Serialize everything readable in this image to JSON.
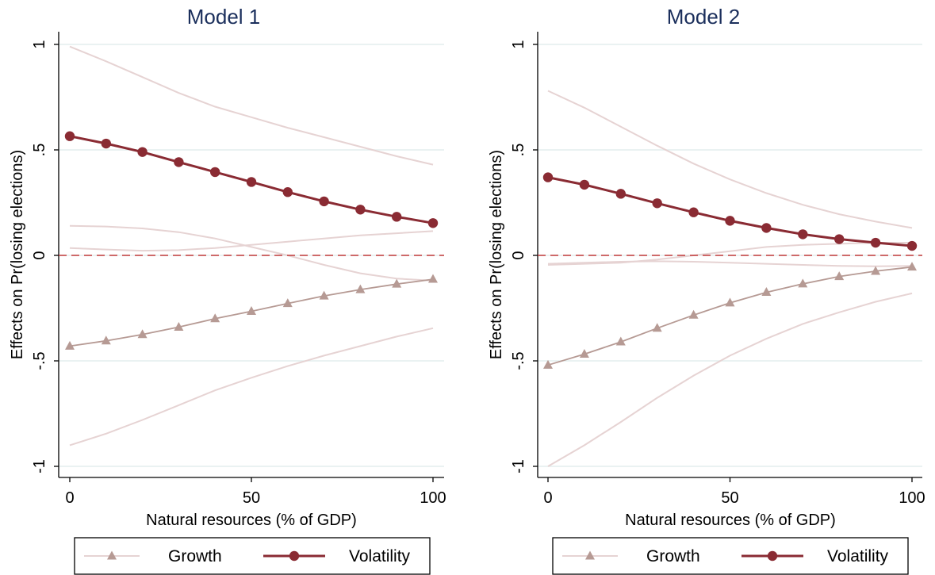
{
  "colors": {
    "volatility": "#8a2b33",
    "growth": "#b69a94",
    "ci": "#e6d3d3",
    "zero_line": "#c23b3b",
    "grid": "#e4eeee",
    "title": "#1b2f5c",
    "axis": "#000000"
  },
  "chart_data": [
    {
      "type": "line",
      "title": "Model 1",
      "xlabel": "Natural resources (% of GDP)",
      "ylabel": "Effects on Pr(losing elections)",
      "xlim": [
        0,
        100
      ],
      "ylim": [
        -1,
        1
      ],
      "xticks": [
        0,
        50,
        100
      ],
      "xtick_labels": [
        "0",
        "50",
        "100"
      ],
      "yticks": [
        -1,
        -0.5,
        0,
        0.5,
        1
      ],
      "ytick_labels": [
        "-1",
        "-.5",
        "0",
        ".5",
        "1"
      ],
      "grid": true,
      "reference_line": 0,
      "x": [
        0,
        10,
        20,
        30,
        40,
        50,
        60,
        70,
        80,
        90,
        100
      ],
      "series": [
        {
          "name": "Growth",
          "marker": "triangle",
          "values": [
            -0.43,
            -0.405,
            -0.375,
            -0.34,
            -0.3,
            -0.265,
            -0.228,
            -0.192,
            -0.162,
            -0.136,
            -0.113
          ],
          "ci_lower": [
            -0.9,
            -0.845,
            -0.78,
            -0.71,
            -0.64,
            -0.58,
            -0.525,
            -0.475,
            -0.43,
            -0.385,
            -0.345
          ],
          "ci_upper": [
            0.035,
            0.028,
            0.022,
            0.025,
            0.035,
            0.05,
            0.065,
            0.08,
            0.095,
            0.105,
            0.115
          ]
        },
        {
          "name": "Volatility",
          "marker": "circle",
          "values": [
            0.565,
            0.53,
            0.49,
            0.442,
            0.395,
            0.348,
            0.3,
            0.256,
            0.217,
            0.183,
            0.153
          ],
          "ci_lower": [
            0.14,
            0.137,
            0.128,
            0.11,
            0.08,
            0.04,
            0.0,
            -0.045,
            -0.085,
            -0.11,
            -0.12
          ],
          "ci_upper": [
            0.99,
            0.92,
            0.845,
            0.77,
            0.705,
            0.655,
            0.605,
            0.56,
            0.515,
            0.47,
            0.43
          ]
        }
      ],
      "legend": {
        "position": "bottom",
        "entries": [
          "Growth",
          "Volatility"
        ]
      }
    },
    {
      "type": "line",
      "title": "Model 2",
      "xlabel": "Natural resources (% of GDP)",
      "ylabel": "Effects on Pr(losing elections)",
      "xlim": [
        0,
        100
      ],
      "ylim": [
        -1,
        1
      ],
      "xticks": [
        0,
        50,
        100
      ],
      "xtick_labels": [
        "0",
        "50",
        "100"
      ],
      "yticks": [
        -1,
        -0.5,
        0,
        0.5,
        1
      ],
      "ytick_labels": [
        "-1",
        "-.5",
        "0",
        ".5",
        "1"
      ],
      "grid": true,
      "reference_line": 0,
      "x": [
        0,
        10,
        20,
        30,
        40,
        50,
        60,
        70,
        80,
        90,
        100
      ],
      "series": [
        {
          "name": "Growth",
          "marker": "triangle",
          "values": [
            -0.52,
            -0.468,
            -0.41,
            -0.345,
            -0.283,
            -0.225,
            -0.175,
            -0.135,
            -0.1,
            -0.075,
            -0.055
          ],
          "ci_lower": [
            -1.0,
            -0.9,
            -0.79,
            -0.675,
            -0.57,
            -0.475,
            -0.395,
            -0.325,
            -0.27,
            -0.22,
            -0.18
          ],
          "ci_upper": [
            -0.045,
            -0.04,
            -0.035,
            -0.02,
            0.0,
            0.02,
            0.04,
            0.05,
            0.055,
            0.06,
            0.06
          ]
        },
        {
          "name": "Volatility",
          "marker": "circle",
          "values": [
            0.37,
            0.335,
            0.292,
            0.247,
            0.204,
            0.164,
            0.13,
            0.1,
            0.077,
            0.06,
            0.045
          ],
          "ci_lower": [
            -0.04,
            -0.035,
            -0.03,
            -0.028,
            -0.03,
            -0.035,
            -0.04,
            -0.045,
            -0.05,
            -0.052,
            -0.05
          ],
          "ci_upper": [
            0.78,
            0.7,
            0.61,
            0.52,
            0.435,
            0.36,
            0.295,
            0.24,
            0.195,
            0.16,
            0.13
          ]
        }
      ],
      "legend": {
        "position": "bottom",
        "entries": [
          "Growth",
          "Volatility"
        ]
      }
    }
  ]
}
